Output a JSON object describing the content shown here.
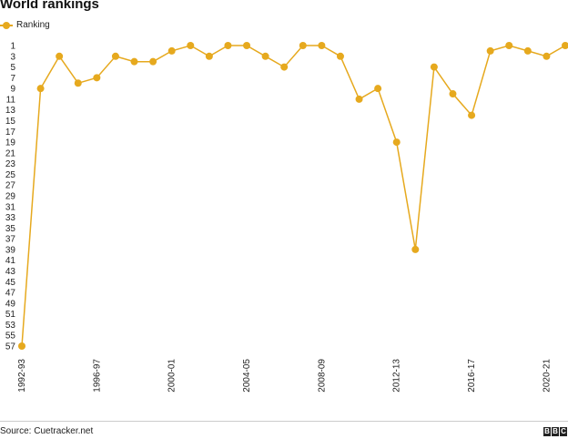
{
  "title": "World rankings",
  "source": "Source: Cuetracker.net",
  "logo_text": "BBC",
  "colors": {
    "series": "#e6a91e",
    "axis_text": "#222222",
    "rule": "#cccccc"
  },
  "chart_data": {
    "type": "line",
    "legend_position": "top-left",
    "grid": false,
    "y_inverted": true,
    "ylim": [
      1,
      57
    ],
    "yticks": [
      1,
      3,
      5,
      7,
      9,
      11,
      13,
      15,
      17,
      19,
      21,
      23,
      25,
      27,
      29,
      31,
      33,
      35,
      37,
      39,
      41,
      43,
      45,
      47,
      49,
      51,
      53,
      55,
      57
    ],
    "x": [
      "1992-93",
      "1993-94",
      "1994-95",
      "1995-96",
      "1996-97",
      "1997-98",
      "1998-99",
      "1999-00",
      "2000-01",
      "2001-02",
      "2002-03",
      "2003-04",
      "2004-05",
      "2005-06",
      "2006-07",
      "2007-08",
      "2008-09",
      "2009-10",
      "2010-11",
      "2011-12",
      "2012-13",
      "2013-14",
      "2014-15",
      "2015-16",
      "2016-17",
      "2017-18",
      "2018-19",
      "2019-20",
      "2020-21",
      "2021-22"
    ],
    "xticks": [
      "1992-93",
      "1996-97",
      "2000-01",
      "2004-05",
      "2008-09",
      "2012-13",
      "2016-17",
      "2020-21"
    ],
    "series": [
      {
        "name": "Ranking",
        "values": [
          57,
          9,
          3,
          8,
          7,
          3,
          4,
          4,
          2,
          1,
          3,
          1,
          1,
          3,
          5,
          1,
          1,
          3,
          11,
          9,
          19,
          39,
          5,
          10,
          14,
          2,
          1,
          2,
          3,
          1
        ]
      }
    ]
  }
}
